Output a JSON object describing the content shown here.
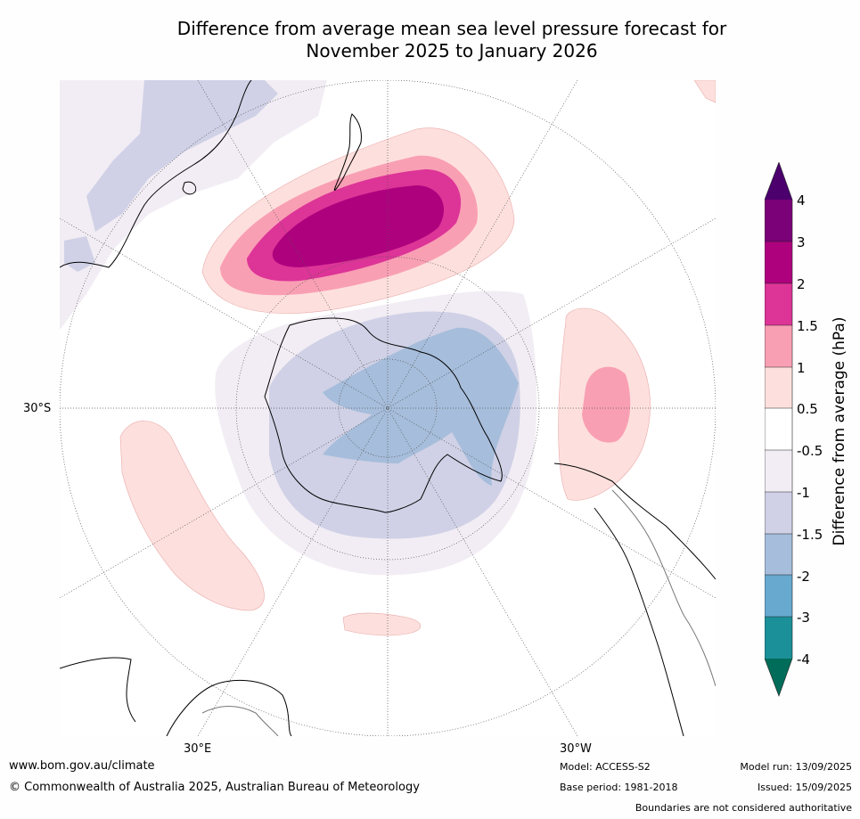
{
  "title_line1": "Difference from average mean sea level pressure forecast for",
  "title_line2": "November 2025 to January 2026",
  "map": {
    "projection": "south-polar stereographic",
    "lat_label": "30°S",
    "lon_labels": [
      "30°E",
      "30°W"
    ]
  },
  "colorbar": {
    "title": "Difference from average (hPa)",
    "tick_labels": [
      "4",
      "3",
      "2",
      "1.5",
      "1",
      "0.5",
      "-0.5",
      "-1",
      "-1.5",
      "-2",
      "-3",
      "-4"
    ],
    "colors": {
      "gt4": "#4b006e",
      "3to4": "#7a0177",
      "2to3": "#ae017e",
      "1.5to2": "#dd3497",
      "1to1.5": "#f99fb4",
      "0.5to1": "#fde0dd",
      "-0.5to0.5": "#ffffff",
      "-1to-0.5": "#f2edf4",
      "-1.5to-1": "#d0d1e6",
      "-2to-1.5": "#a6bddb",
      "-3to-2": "#67a9cf",
      "-4to-3": "#1c9099",
      "lt-4": "#016c59"
    }
  },
  "footer": {
    "website": "www.bom.gov.au/climate",
    "copyright": "© Commonwealth of Australia 2025, Australian Bureau of Meteorology",
    "model": "Model: ACCESS-S2",
    "base_period": "Base period: 1981-2018",
    "model_run": "Model run: 13/09/2025",
    "issued": "Issued: 15/09/2025",
    "disclaimer": "Boundaries are not considered authoritative"
  }
}
